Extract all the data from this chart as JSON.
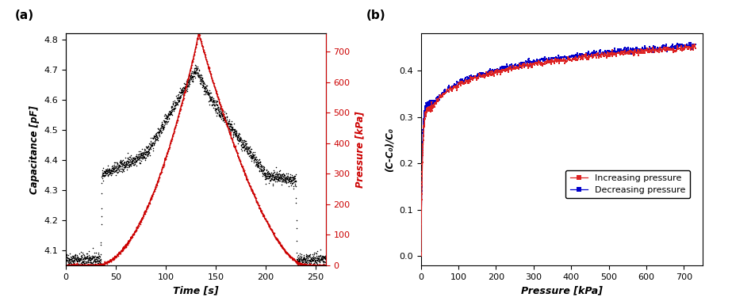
{
  "panel_a": {
    "label": "(a)",
    "xlabel": "Time [s]",
    "ylabel_left": "Capacitance [pF]",
    "ylabel_right": "Pressure [kPa]",
    "xlim": [
      0,
      260
    ],
    "ylim_left": [
      4.05,
      4.82
    ],
    "ylim_right": [
      0,
      760
    ],
    "yticks_left": [
      4.1,
      4.2,
      4.3,
      4.4,
      4.5,
      4.6,
      4.7,
      4.8
    ],
    "yticks_right": [
      0,
      100,
      200,
      300,
      400,
      500,
      600,
      700
    ],
    "xticks": [
      0,
      50,
      100,
      150,
      200,
      250
    ],
    "cap_color": "#000000",
    "pressure_color": "#cc0000"
  },
  "panel_b": {
    "label": "(b)",
    "xlabel": "Pressure [kPa]",
    "ylabel": "(C-C₀)/C₀",
    "xlim": [
      0,
      750
    ],
    "ylim": [
      -0.02,
      0.48
    ],
    "xticks": [
      0,
      100,
      200,
      300,
      400,
      500,
      600,
      700
    ],
    "yticks": [
      0.0,
      0.1,
      0.2,
      0.3,
      0.4
    ],
    "increasing_color": "#dd2222",
    "decreasing_color": "#0000cc",
    "legend_increasing": "Increasing pressure",
    "legend_decreasing": "Decreasing pressure"
  }
}
